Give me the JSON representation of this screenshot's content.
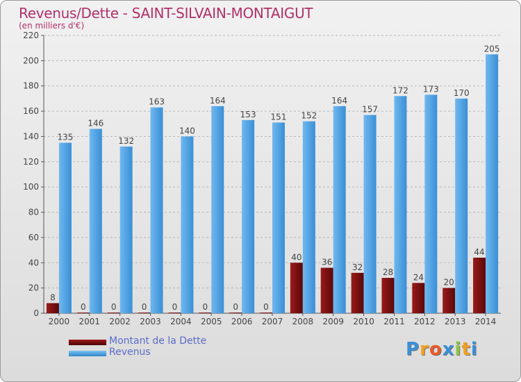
{
  "chart_data": {
    "type": "bar",
    "title": "Revenus/Dette - SAINT-SILVAIN-MONTAIGUT",
    "subtitle": "(en milliers d'€)",
    "categories": [
      "2000",
      "2001",
      "2002",
      "2003",
      "2004",
      "2005",
      "2006",
      "2007",
      "2008",
      "2009",
      "2010",
      "2011",
      "2012",
      "2013",
      "2014"
    ],
    "series": [
      {
        "name": "Montant de la Dette",
        "color": "#7a0f0f",
        "values": [
          8,
          0,
          0,
          0,
          0,
          0,
          0,
          0,
          40,
          36,
          32,
          28,
          24,
          20,
          44
        ]
      },
      {
        "name": "Revenus",
        "color": "#4ea3e3",
        "values": [
          135,
          146,
          132,
          163,
          140,
          164,
          153,
          151,
          152,
          164,
          157,
          172,
          173,
          170,
          205
        ]
      }
    ],
    "y_ticks": [
      "0",
      "20",
      "40",
      "60",
      "80",
      "100",
      "120",
      "140",
      "160",
      "180",
      "200",
      "220"
    ],
    "ylim": [
      0,
      220
    ],
    "grid": "dashed-horizontal",
    "legend_position": "bottom-left"
  },
  "logo": {
    "letters": [
      "P",
      "r",
      "o",
      "x",
      "i",
      "t",
      "i"
    ],
    "colors": [
      "#3b8fd8",
      "#f0a020",
      "#e85a2a",
      "#3b8fd8",
      "#8cc63f",
      "#f0a020",
      "#3b8fd8"
    ]
  }
}
